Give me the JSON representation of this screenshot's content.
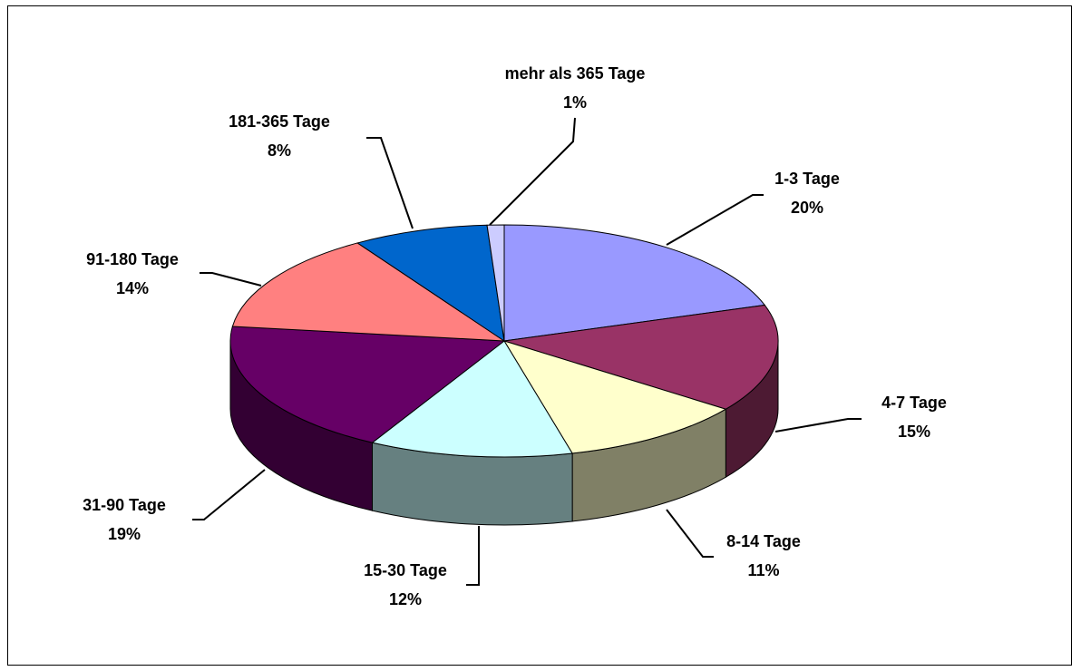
{
  "chart_data": {
    "type": "pie3d",
    "categories": [
      "1-3 Tage",
      "4-7 Tage",
      "8-14 Tage",
      "15-30 Tage",
      "31-90 Tage",
      "91-180 Tage",
      "181-365 Tage",
      "mehr als 365 Tage"
    ],
    "values": [
      20,
      15,
      11,
      12,
      19,
      14,
      8,
      1
    ],
    "value_labels": [
      "20%",
      "15%",
      "11%",
      "12%",
      "19%",
      "14%",
      "8%",
      "1%"
    ],
    "colors": [
      "#9999ff",
      "#993366",
      "#ffffcc",
      "#ccffff",
      "#660066",
      "#ff8080",
      "#0066cc",
      "#ccccff"
    ]
  }
}
